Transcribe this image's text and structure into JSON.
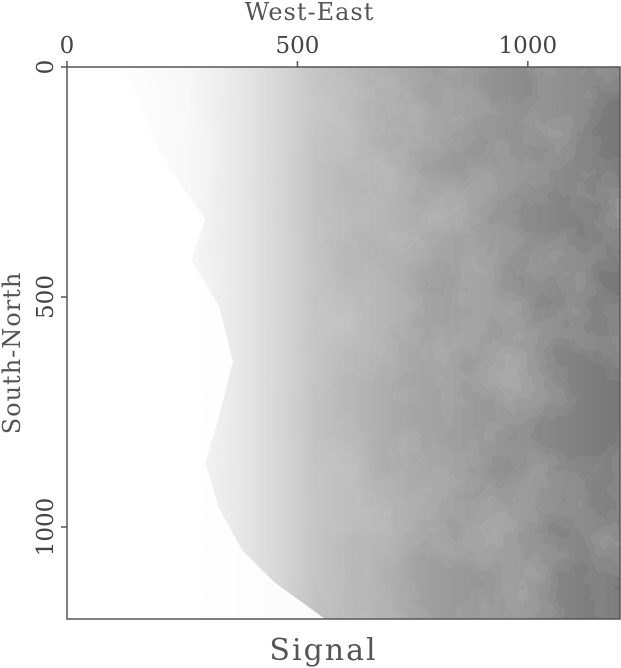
{
  "chart_data": {
    "type": "heatmap",
    "title": "Signal",
    "xlabel": "West-East",
    "ylabel": "South-North",
    "xlim": [
      0,
      1200
    ],
    "ylim": [
      0,
      1200
    ],
    "x_axis_position": "top",
    "y_axis_direction": "down",
    "xticks": [
      0,
      500,
      1000
    ],
    "yticks": [
      0,
      500,
      1000
    ],
    "xtick_labels": [
      "0",
      "500",
      "1000"
    ],
    "ytick_labels": [
      "0",
      "500",
      "1000"
    ],
    "colormap": "grayscale",
    "description_color_low": "#ffffff",
    "description_color_high": "#555555"
  }
}
